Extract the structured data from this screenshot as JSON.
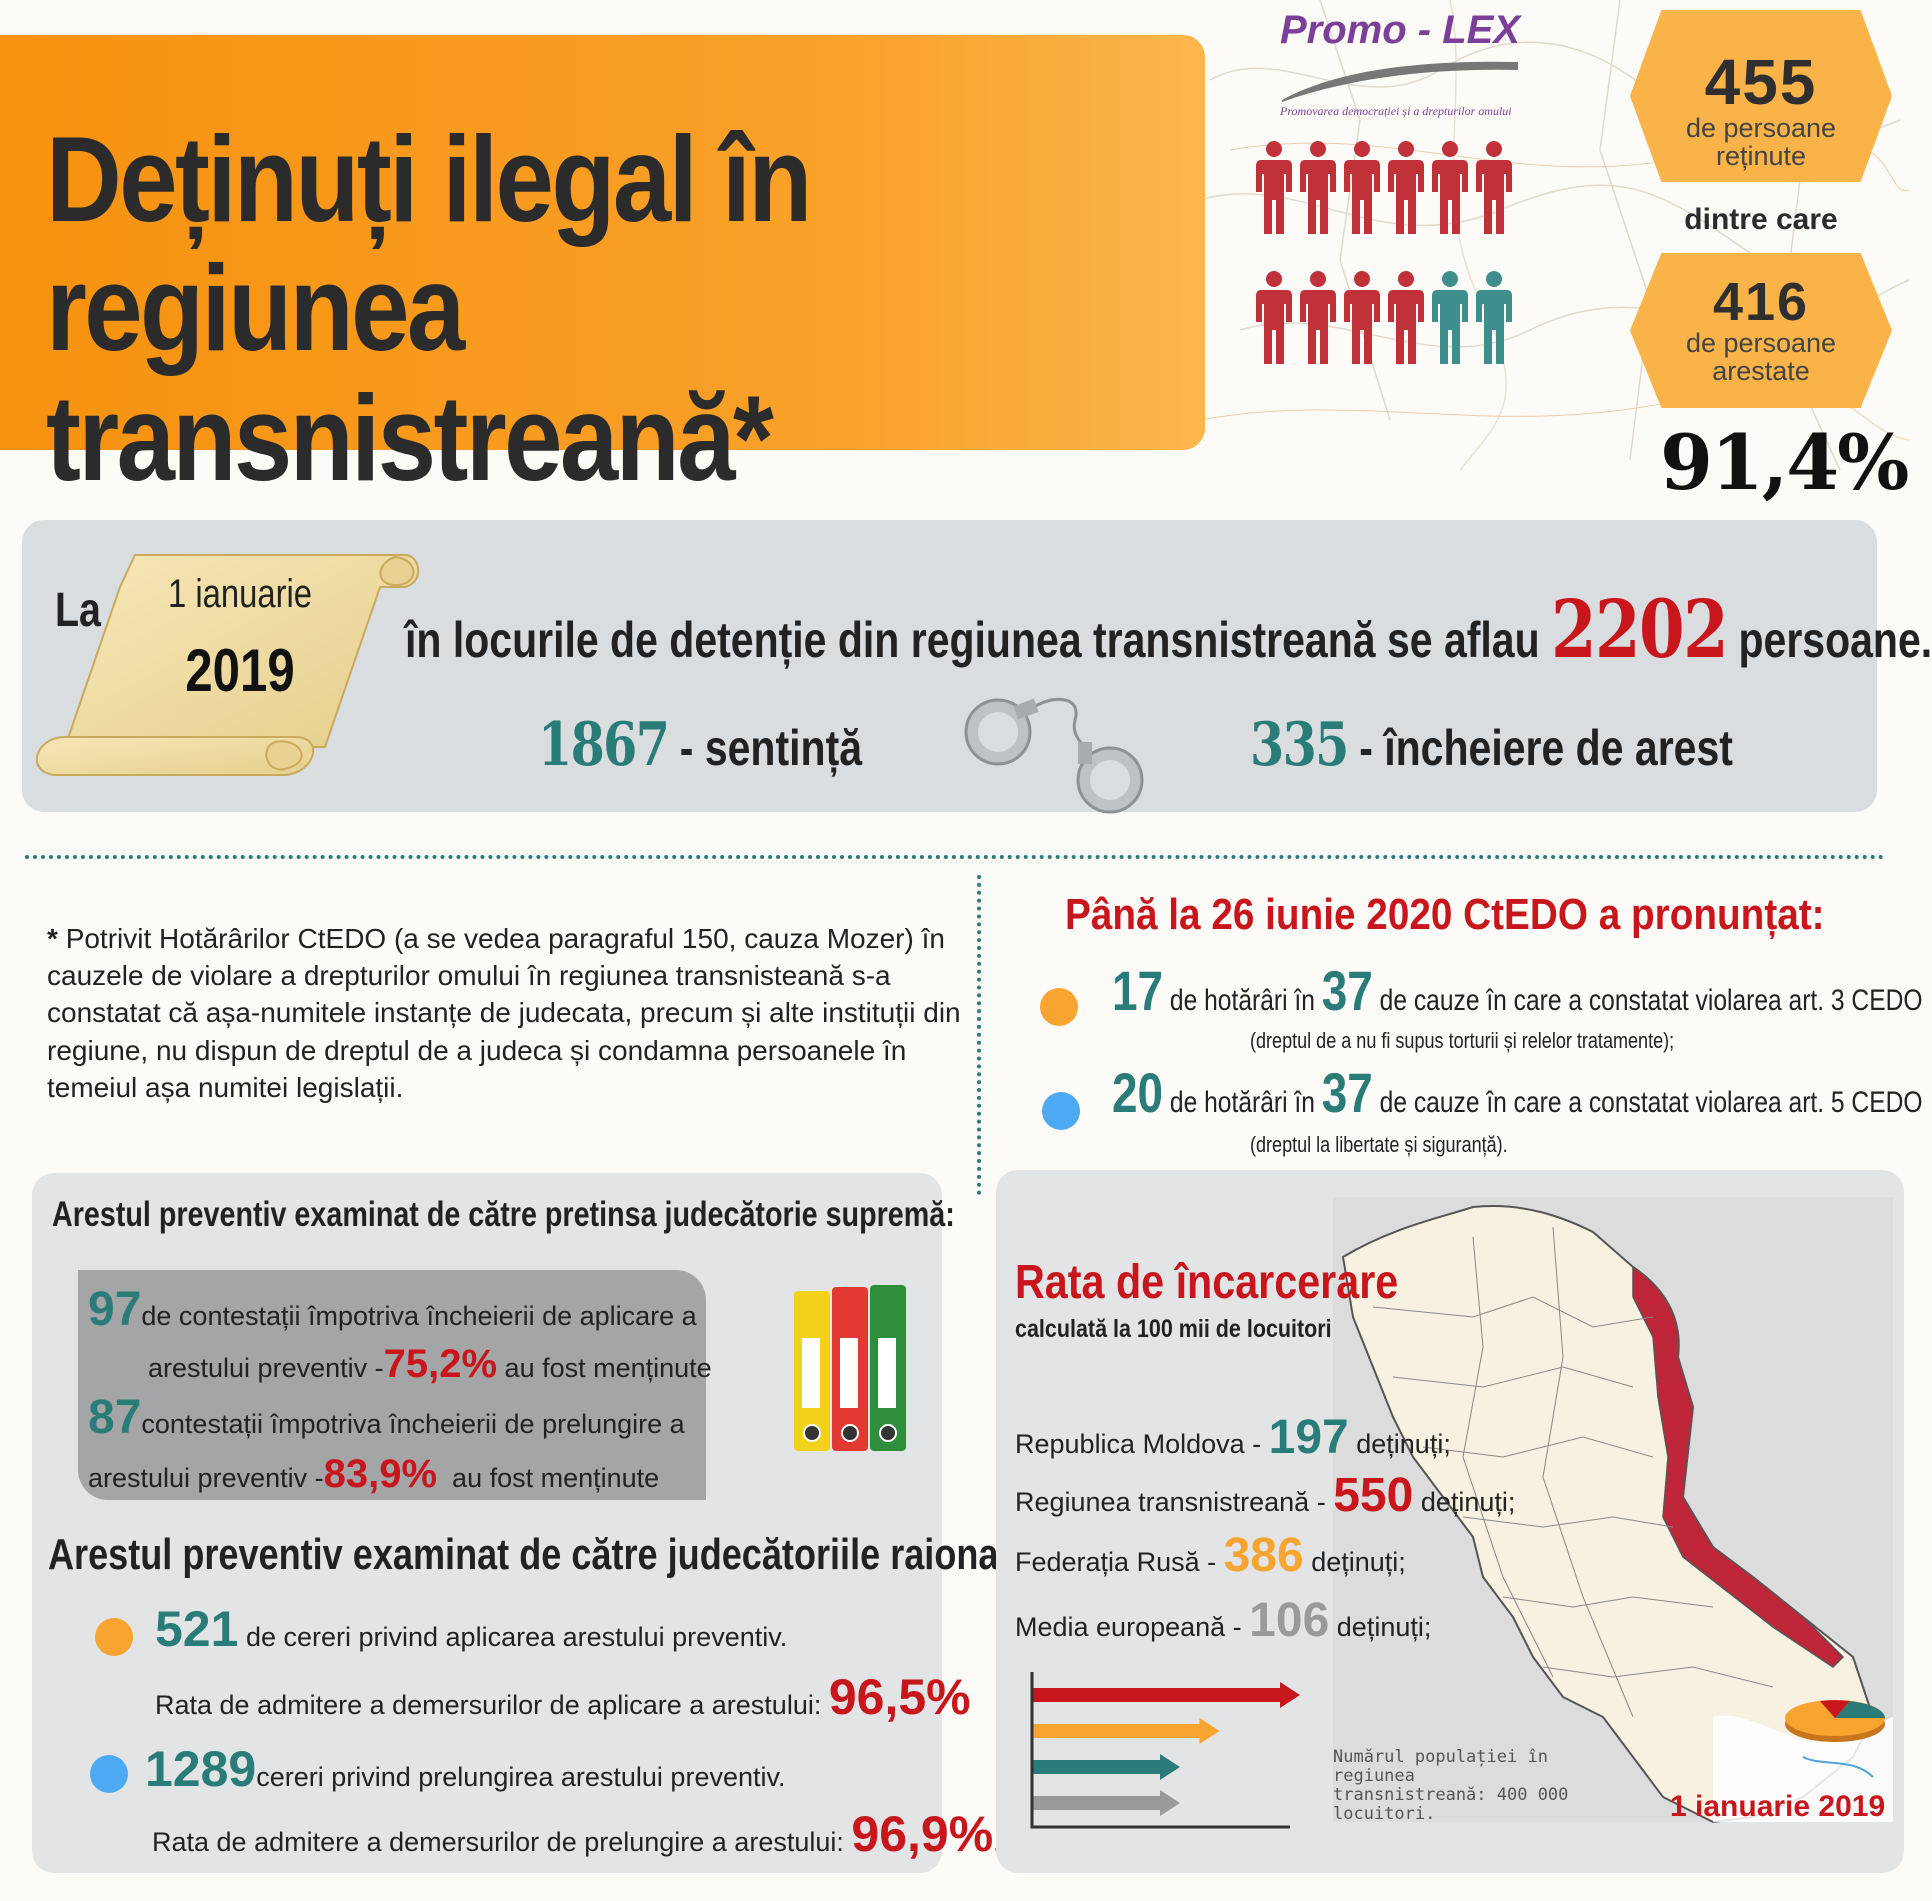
{
  "header": {
    "title_line1": "Deținuți ilegal în",
    "title_line2": "regiunea transnistreană*",
    "logo": "Promo - LEX",
    "logo_subtitle": "Promovarea democrației și a drepturilor omului"
  },
  "stats": {
    "retained_number": "455",
    "retained_label_1": "de persoane",
    "retained_label_2": "reținute",
    "connector": "dintre care",
    "arrested_number": "416",
    "arrested_label_1": "de persoane",
    "arrested_label_2": "arestate",
    "percent": "91,4%"
  },
  "band": {
    "la": "La",
    "date_day": "1 ianuarie",
    "date_year": "2019",
    "text_before": "în locurile de detenție din regiunea transnistreană se aflau",
    "total": "2202",
    "text_after": "persoane.",
    "sentence_num": "1867",
    "sentence_label": "- sentință",
    "arrest_num": "335",
    "arrest_label": "- încheiere de arest"
  },
  "footnote": {
    "star": "*",
    "text": "Potrivit Hotărârilor CtEDO (a se vedea paragraful 150, cauza Mozer) în cauzele de violare a drepturilor omului în regiunea transnisteană s-a constatat că așa-numitele instanțe de judecata, precum și alte instituții din regiune, nu dispun de dreptul de a judeca și condamna persoanele în temeiul așa numitei legislații."
  },
  "ctedo": {
    "title": "Până la 26 iunie 2020 CtEDO a pronunțat:",
    "items": [
      {
        "num": "17",
        "mid": "de hotărâri în",
        "total": "37",
        "text": "de cauze în care a constatat violarea art. 3 CEDO",
        "sub": "(dreptul de a nu fi supus torturii și relelor tratamente);",
        "color": "#f8a431"
      },
      {
        "num": "20",
        "mid": "de hotărâri în",
        "total": "37",
        "text": "de cauze în care a constatat violarea art. 5 CEDO",
        "sub": "(dreptul la libertate și siguranță).",
        "color": "#4daaf2"
      }
    ]
  },
  "supreme": {
    "title": "Arestul preventiv examinat de către pretinsa judecătorie supremă:",
    "r1_num": "97",
    "r1_text_a": "de contestații împotriva încheierii de aplicare a",
    "r1_text_b": "arestului preventiv -",
    "r1_pct": "75,2%",
    "r1_text_c": "au fost menținute",
    "r2_num": "87",
    "r2_text_a": "contestații împotriva încheierii de prelungire a",
    "r2_text_b": "arestului preventiv -",
    "r2_pct": "83,9%",
    "r2_text_c": "au fost menținute"
  },
  "district": {
    "title": "Arestul preventiv examinat de către judecătoriile raionale:",
    "a_num": "521",
    "a_text": "de cereri privind aplicarea arestului preventiv.",
    "a_rate_label": "Rata de admitere a demersurilor de aplicare a arestului:",
    "a_rate": "96,5%",
    "b_num": "1289",
    "b_text": "cereri privind prelungirea arestului preventiv.",
    "b_rate_label": "Rata de admitere a demersurilor de prelungire a arestului:",
    "b_rate": "96,9%",
    "b_period": "."
  },
  "incarceration": {
    "title": "Rata de încarcerare",
    "subtitle": "calculată la 100 mii de locuitori",
    "rows": [
      {
        "label": "Republica Moldova -",
        "value": "197",
        "suffix": "deținuți;",
        "color": "#2a7c78"
      },
      {
        "label": "Regiunea transnistreană -",
        "value": "550",
        "suffix": "deținuți;",
        "color": "#c8161d"
      },
      {
        "label": "Federația Rusă -",
        "value": "386",
        "suffix": "deținuți;",
        "color": "#f8a431"
      },
      {
        "label": "Media europeană -",
        "value": "106",
        "suffix": "deținuți;",
        "color": "#9a9a9a"
      }
    ],
    "population_note": "Numărul populației în regiunea transnistreană: 400 000 locuitori.",
    "date": "1 ianuarie 2019"
  }
}
